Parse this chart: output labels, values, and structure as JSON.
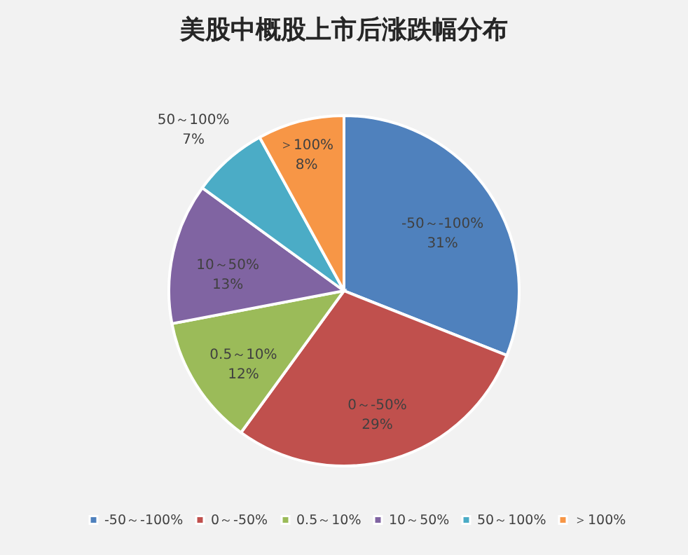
{
  "chart_data": {
    "type": "pie",
    "title": "美股中概股上市后涨跌幅分布",
    "categories": [
      "-50～-100%",
      "0～-50%",
      "0.5～10%",
      "10～50%",
      "50～100%",
      "＞100%"
    ],
    "values": [
      31,
      29,
      12,
      13,
      7,
      8
    ],
    "value_labels": [
      "31%",
      "29%",
      "12%",
      "13%",
      "7%",
      "8%"
    ],
    "colors": [
      "#4f81bd",
      "#c0504d",
      "#9bbb59",
      "#8064a2",
      "#4bacc6",
      "#f79646"
    ],
    "legend": "bottom"
  }
}
